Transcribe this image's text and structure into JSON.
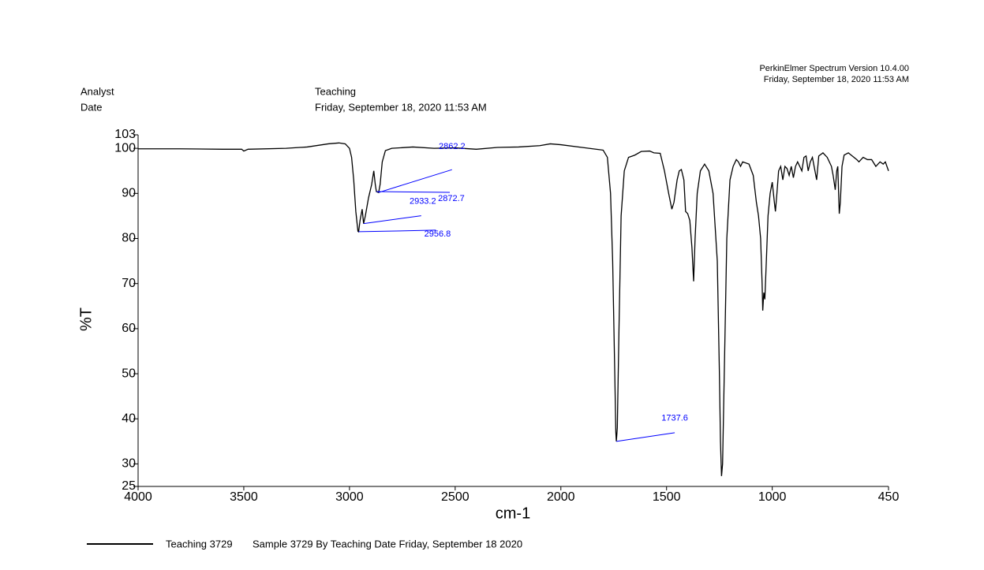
{
  "header": {
    "analyst_label": "Analyst",
    "date_label": "Date",
    "analyst": "Teaching",
    "date": "Friday, September 18, 2020 11:53 AM",
    "software": "PerkinElmer Spectrum Version 10.4.00",
    "software_date": "Friday, September 18, 2020 11:53 AM"
  },
  "chart_data": {
    "type": "line",
    "x_label": "cm-1",
    "y_label": "%T",
    "xlim": [
      4000,
      450
    ],
    "ylim": [
      25,
      103
    ],
    "xticks": [
      4000,
      3500,
      3000,
      2500,
      2000,
      1500,
      1000,
      450
    ],
    "yticks": [
      25,
      30,
      40,
      50,
      60,
      70,
      80,
      90,
      100,
      103
    ],
    "legend_description": "Sample 3729 By Teaching Date Friday, September 18 2020",
    "series": [
      {
        "name": "Teaching 3729",
        "color": "#000000",
        "x": [
          4000,
          3800,
          3600,
          3510,
          3500,
          3480,
          3300,
          3200,
          3100,
          3050,
          3020,
          3000,
          2990,
          2980,
          2970,
          2960,
          2956.8,
          2950,
          2940,
          2933.2,
          2925,
          2910,
          2895,
          2885,
          2878,
          2872.7,
          2862.2,
          2855,
          2845,
          2830,
          2800,
          2700,
          2600,
          2500,
          2400,
          2300,
          2200,
          2100,
          2050,
          2000,
          1900,
          1800,
          1780,
          1765,
          1755,
          1745,
          1740,
          1737.6,
          1733,
          1725,
          1715,
          1700,
          1680,
          1650,
          1620,
          1580,
          1560,
          1530,
          1510,
          1490,
          1475,
          1465,
          1450,
          1440,
          1430,
          1418,
          1410,
          1400,
          1390,
          1380,
          1372,
          1365,
          1355,
          1340,
          1320,
          1300,
          1280,
          1260,
          1250,
          1245,
          1240,
          1235,
          1225,
          1215,
          1200,
          1185,
          1170,
          1160,
          1150,
          1140,
          1110,
          1090,
          1075,
          1065,
          1055,
          1048,
          1045,
          1040,
          1035,
          1028,
          1020,
          1010,
          1000,
          990,
          985,
          978,
          970,
          960,
          950,
          940,
          930,
          920,
          910,
          900,
          890,
          880,
          870,
          860,
          850,
          840,
          830,
          820,
          810,
          800,
          790,
          780,
          760,
          740,
          720,
          712,
          702,
          695,
          690,
          683,
          678,
          670,
          660,
          640,
          600,
          590,
          570,
          550,
          530,
          510,
          490,
          475,
          465,
          450
        ],
        "values": [
          99.9,
          99.9,
          99.8,
          99.8,
          99.4,
          99.8,
          100.0,
          100.3,
          101.0,
          101.2,
          101.0,
          100.0,
          98,
          93,
          86,
          81.6,
          81.5,
          84,
          86.5,
          83.3,
          85,
          89,
          92,
          95,
          92,
          90.4,
          90.2,
          92,
          97,
          99.5,
          100,
          100.3,
          100,
          100.1,
          99.8,
          100.2,
          100.3,
          100.6,
          101,
          100.8,
          100.2,
          99.6,
          98,
          90,
          75,
          50,
          37,
          35,
          38,
          60,
          85,
          95,
          98,
          98.5,
          99.3,
          99.4,
          99,
          98.9,
          95,
          90,
          86.5,
          88,
          93,
          95,
          95.3,
          93,
          86,
          85.5,
          84,
          78,
          70.5,
          80,
          90,
          95,
          96.5,
          95,
          90,
          75,
          50,
          35,
          27.3,
          30,
          55,
          80,
          93,
          96,
          97.5,
          97,
          96,
          97,
          96.5,
          94,
          88,
          85,
          80,
          70,
          64,
          68,
          66.5,
          75,
          85,
          90,
          92.5,
          88,
          86,
          90,
          95,
          96,
          93,
          96,
          95.5,
          94,
          96,
          93.5,
          96,
          97,
          96,
          95,
          98,
          98.3,
          95,
          97,
          98,
          95.5,
          93,
          98.3,
          99,
          98,
          96,
          94,
          90.8,
          95,
          96,
          85.5,
          88,
          96,
          98.5,
          99,
          97.5,
          97,
          98,
          97.5,
          97.5,
          96,
          97,
          96.5,
          97,
          95
        ]
      }
    ],
    "peaks": [
      {
        "x": 2862.2,
        "y": 90.2
      },
      {
        "x": 2872.7,
        "y": 90.4
      },
      {
        "x": 2933.2,
        "y": 83.3
      },
      {
        "x": 2956.8,
        "y": 81.5
      },
      {
        "x": 1737.6,
        "y": 35
      }
    ],
    "peak_color": "#0000ff"
  }
}
